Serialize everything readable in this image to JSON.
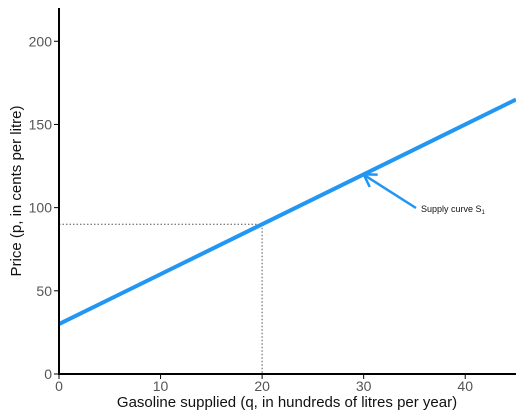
{
  "chart_data": {
    "type": "line",
    "title": "",
    "xlabel": "Gasoline supplied (q, in hundreds of litres per year)",
    "ylabel": "Price (p, in cents per litre)",
    "xlim": [
      0,
      45
    ],
    "ylim": [
      0,
      220
    ],
    "x_ticks": [
      0,
      10,
      20,
      30,
      40
    ],
    "y_ticks": [
      0,
      50,
      100,
      150,
      200
    ],
    "grid": false,
    "series": [
      {
        "name": "Supply curve S1",
        "x": [
          0,
          45
        ],
        "y": [
          30,
          165
        ],
        "color": "#2196F3"
      }
    ],
    "reference_point": {
      "x": 20,
      "y": 90,
      "style": "dotted"
    },
    "annotation": {
      "text": "Supply curve S",
      "subscript": "1",
      "points_to": {
        "x": 30,
        "y": 120
      }
    }
  }
}
